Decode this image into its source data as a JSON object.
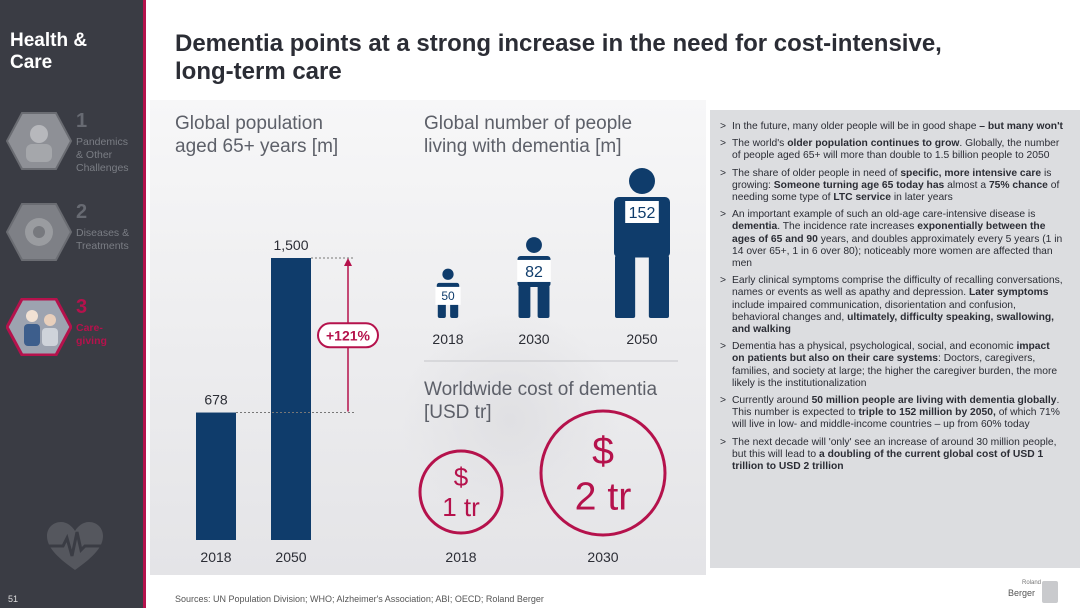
{
  "sidebar": {
    "title": "Health &\nCare",
    "page_number": "51",
    "sections": [
      {
        "number": "1",
        "label": "Pandemics\n& Other\nChallenges",
        "active": false
      },
      {
        "number": "2",
        "label": "Diseases &\nTreatments",
        "active": false
      },
      {
        "number": "3",
        "label": "Care-\ngiving",
        "active": true
      }
    ],
    "icon": "heartbeat-icon"
  },
  "headline": "Dementia points at a strong increase in the need for cost-intensive, long-term care",
  "colors": {
    "brand": "#b5124c",
    "bar": "#0f3c6b",
    "sidebar": "#3a3c44",
    "panel": "#dcdde0"
  },
  "charts": {
    "population": {
      "title": "Global population\naged 65+ years [m]",
      "growth_label": "+121%"
    },
    "dementia": {
      "title": "Global number of people\nliving with dementia [m]"
    },
    "cost": {
      "title": "Worldwide cost of dementia\n[USD tr]",
      "currency_symbol": "$"
    }
  },
  "chart_data": [
    {
      "type": "bar",
      "title": "Global population aged 65+ years [m]",
      "categories": [
        "2018",
        "2050"
      ],
      "values": [
        678,
        1500
      ],
      "value_labels": [
        "678",
        "1,500"
      ],
      "annotation": "+121%"
    },
    {
      "type": "bar",
      "title": "Global number of people living with dementia [m]",
      "categories": [
        "2018",
        "2030",
        "2050"
      ],
      "values": [
        50,
        82,
        152
      ],
      "value_labels": [
        "50",
        "82",
        "152"
      ]
    },
    {
      "type": "bar",
      "title": "Worldwide cost of dementia [USD tr]",
      "categories": [
        "2018",
        "2030"
      ],
      "values": [
        1,
        2
      ],
      "value_labels": [
        "1 tr",
        "2 tr"
      ]
    }
  ],
  "bullets": [
    [
      {
        "t": "In the future, many older people will be in good shape "
      },
      {
        "t": "– but many won't",
        "b": true
      }
    ],
    [
      {
        "t": "The world's "
      },
      {
        "t": "older population continues to grow",
        "b": true
      },
      {
        "t": ". Globally, the number of people aged 65+ will more than double to 1.5 billion people to 2050"
      }
    ],
    [
      {
        "t": "The share of older people in need of "
      },
      {
        "t": "specific, more intensive care",
        "b": true
      },
      {
        "t": " is growing: "
      },
      {
        "t": "Someone turning age 65 today has",
        "b": true
      },
      {
        "t": " almost a "
      },
      {
        "t": "75% chance",
        "b": true
      },
      {
        "t": " of needing some type of "
      },
      {
        "t": "LTC service",
        "b": true
      },
      {
        "t": " in later years"
      }
    ],
    [
      {
        "t": "An important example of such an old-age care-intensive disease is "
      },
      {
        "t": "dementia",
        "b": true
      },
      {
        "t": ". The incidence rate increases "
      },
      {
        "t": "exponentially between the ages of 65 and 90",
        "b": true
      },
      {
        "t": " years, and doubles approximately every 5 years (1 in 14 over 65+, 1 in 6 over 80); noticeably more women are affected than men"
      }
    ],
    [
      {
        "t": "Early clinical symptoms comprise the difficulty of recalling conversations, names or events as well as apathy and depression. "
      },
      {
        "t": "Later symptoms",
        "b": true
      },
      {
        "t": " include impaired communication, disorientation and confusion, behavioral changes and, "
      },
      {
        "t": "ultimately, difficulty speaking, swallowing, and walking",
        "b": true
      }
    ],
    [
      {
        "t": "Dementia has a physical, psychological, social, and economic "
      },
      {
        "t": "impact on patients but also on their care systems",
        "b": true
      },
      {
        "t": ": Doctors, caregivers, families, and society at large; the higher the caregiver burden, the more likely is the institutionalization"
      }
    ],
    [
      {
        "t": "Currently around "
      },
      {
        "t": "50 million people are living with dementia globally",
        "b": true
      },
      {
        "t": ". This number is expected to "
      },
      {
        "t": "triple to 152 million by 2050,",
        "b": true
      },
      {
        "t": " of which 71% will live in low- and middle-income countries – up from 60% today"
      }
    ],
    [
      {
        "t": "The next decade will 'only' see an increase of around 30 million people, but this will lead to "
      },
      {
        "t": "a doubling of the current global cost of USD 1 trillion to USD 2 trillion",
        "b": true
      }
    ]
  ],
  "sources": "Sources: UN Population Division; WHO; Alzheimer's Association; ABI; OECD; Roland Berger",
  "logo": {
    "small": "Roland",
    "text": "Berger"
  }
}
